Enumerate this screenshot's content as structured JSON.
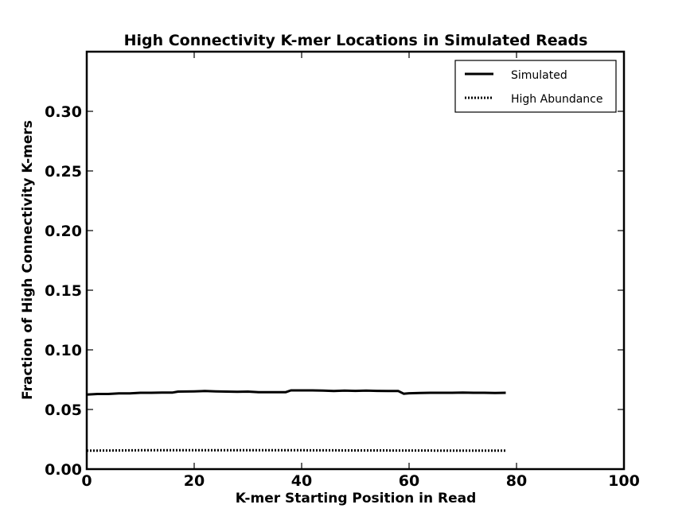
{
  "chart_data": {
    "type": "line",
    "title": "High Connectivity K-mer Locations in Simulated Reads",
    "xlabel": "K-mer Starting Position in Read",
    "ylabel": "Fraction of High Connectivity K-mers",
    "xlim": [
      0,
      100
    ],
    "ylim": [
      0,
      0.35
    ],
    "xticks": [
      0,
      20,
      40,
      60,
      80,
      100
    ],
    "xtick_labels": [
      "0",
      "20",
      "40",
      "60",
      "80",
      "100"
    ],
    "yticks": [
      0.0,
      0.05,
      0.1,
      0.15,
      0.2,
      0.25,
      0.3
    ],
    "ytick_labels": [
      "0.00",
      "0.05",
      "0.10",
      "0.15",
      "0.20",
      "0.25",
      "0.30"
    ],
    "grid": false,
    "legend_position": "top-right",
    "series": [
      {
        "name": "Simulated",
        "style": "solid",
        "color": "#000000",
        "x": [
          0,
          2,
          4,
          6,
          8,
          10,
          12,
          14,
          16,
          17,
          20,
          22,
          24,
          26,
          28,
          30,
          32,
          34,
          37,
          38,
          40,
          42,
          44,
          46,
          48,
          50,
          52,
          54,
          56,
          58,
          59,
          60,
          62,
          64,
          66,
          68,
          70,
          72,
          74,
          76,
          78
        ],
        "y": [
          0.0625,
          0.063,
          0.063,
          0.0635,
          0.0635,
          0.064,
          0.064,
          0.0642,
          0.0642,
          0.065,
          0.0652,
          0.0655,
          0.0652,
          0.065,
          0.0648,
          0.065,
          0.0645,
          0.0645,
          0.0645,
          0.066,
          0.066,
          0.066,
          0.0658,
          0.0655,
          0.0658,
          0.0656,
          0.0658,
          0.0656,
          0.0655,
          0.0655,
          0.0632,
          0.0636,
          0.0638,
          0.064,
          0.064,
          0.064,
          0.0642,
          0.064,
          0.064,
          0.0638,
          0.064
        ]
      },
      {
        "name": "High Abundance",
        "style": "dotted",
        "color": "#000000",
        "x": [
          0,
          10,
          20,
          30,
          40,
          50,
          60,
          70,
          78
        ],
        "y": [
          0.0155,
          0.0158,
          0.0158,
          0.0158,
          0.0158,
          0.0157,
          0.0156,
          0.0155,
          0.0155
        ]
      }
    ]
  }
}
